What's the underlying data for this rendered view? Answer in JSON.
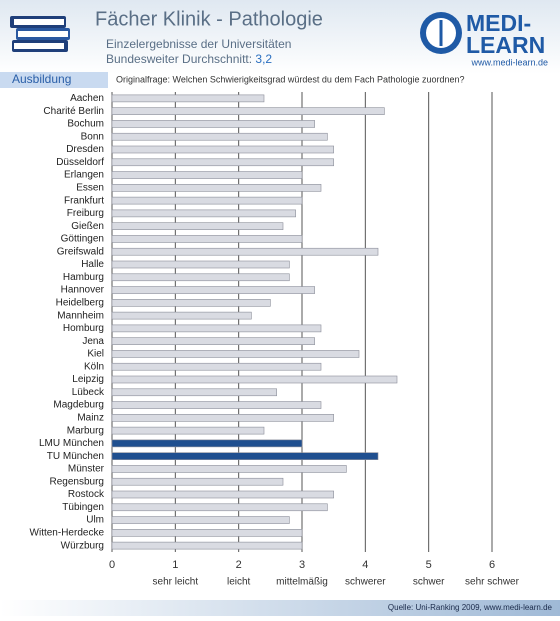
{
  "chart_data": {
    "type": "hbar",
    "title": "Fächer Klinik - Pathologie",
    "subtitle": "Einzelergebnisse der Universitäten",
    "average_text": "Bundesweiter Durchschnitt:",
    "average": {
      "value": 3.2,
      "label": "3,2"
    },
    "logo_top": "MEDI-",
    "logo_bottom": "LEARN",
    "logo_url": "www.medi-learn.de",
    "section": "Ausbildung",
    "question": "Originalfrage: Welchen Schwierigkeitsgrad würdest du dem Fach Pathologie zuordnen?",
    "source": "Quelle: Uni-Ranking 2009, www.medi-learn.de",
    "categories": [
      "Aachen",
      "Charité Berlin",
      "Bochum",
      "Bonn",
      "Dresden",
      "Düsseldorf",
      "Erlangen",
      "Essen",
      "Frankfurt",
      "Freiburg",
      "Gießen",
      "Göttingen",
      "Greifswald",
      "Halle",
      "Hamburg",
      "Hannover",
      "Heidelberg",
      "Mannheim",
      "Homburg",
      "Jena",
      "Kiel",
      "Köln",
      "Leipzig",
      "Lübeck",
      "Magdeburg",
      "Mainz",
      "Marburg",
      "LMU München",
      "TU München",
      "Münster",
      "Regensburg",
      "Rostock",
      "Tübingen",
      "Ulm",
      "Witten-Herdecke",
      "Würzburg"
    ],
    "values": [
      2.4,
      4.3,
      3.2,
      3.4,
      3.5,
      3.5,
      3.0,
      3.3,
      3.0,
      2.9,
      2.7,
      3.0,
      4.2,
      2.8,
      2.8,
      3.2,
      2.5,
      2.2,
      3.3,
      3.2,
      3.9,
      3.3,
      4.5,
      2.6,
      3.3,
      3.5,
      2.4,
      3.0,
      4.2,
      3.7,
      2.7,
      3.5,
      3.4,
      2.8,
      3.0,
      3.0
    ],
    "colors": [
      "#d9dbe2",
      "#d9dbe2",
      "#d9dbe2",
      "#d9dbe2",
      "#d9dbe2",
      "#d9dbe2",
      "#d9dbe2",
      "#d9dbe2",
      "#d9dbe2",
      "#d9dbe2",
      "#d9dbe2",
      "#d9dbe2",
      "#d9dbe2",
      "#d9dbe2",
      "#d9dbe2",
      "#d9dbe2",
      "#d9dbe2",
      "#d9dbe2",
      "#d9dbe2",
      "#d9dbe2",
      "#d9dbe2",
      "#d9dbe2",
      "#d9dbe2",
      "#d9dbe2",
      "#d9dbe2",
      "#d9dbe2",
      "#d9dbe2",
      "#1f4f8f",
      "#1f4f8f",
      "#d9dbe2",
      "#d9dbe2",
      "#d9dbe2",
      "#d9dbe2",
      "#d9dbe2",
      "#d9dbe2",
      "#d9dbe2"
    ],
    "xlim": [
      0,
      6
    ],
    "xticks": [
      0,
      1,
      2,
      3,
      4,
      5,
      6
    ],
    "scale_labels": [
      {
        "value": 1,
        "label": "sehr leicht"
      },
      {
        "value": 2,
        "label": "leicht"
      },
      {
        "value": 3,
        "label": "mittelmäßig"
      },
      {
        "value": 4,
        "label": "schwerer"
      },
      {
        "value": 5,
        "label": "schwer"
      },
      {
        "value": 6,
        "label": "sehr schwer"
      }
    ],
    "grid": true
  }
}
